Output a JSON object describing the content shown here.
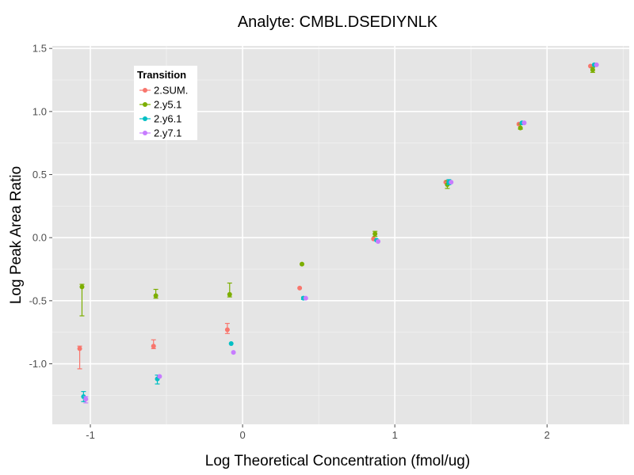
{
  "chart_data": {
    "type": "scatter",
    "title": "Analyte: CMBL.DSEDIYNLK",
    "xlabel": "Log Theoretical Concentration (fmol/ug)",
    "ylabel": "Log Peak Area Ratio",
    "xlim": [
      -1.25,
      2.54
    ],
    "ylim": [
      -1.48,
      1.52
    ],
    "x_ticks": [
      -1,
      0,
      1,
      2
    ],
    "x_tick_labels": [
      "-1",
      "0",
      "1",
      "2"
    ],
    "y_ticks": [
      -1.0,
      -0.5,
      0.0,
      0.5,
      1.0,
      1.5
    ],
    "y_tick_labels": [
      "-1.0",
      "-0.5",
      "0.0",
      "0.5",
      "1.0",
      "1.5"
    ],
    "grid": true,
    "background": "#e5e5e5",
    "legend": {
      "title": "Transition",
      "position": "top-left inside"
    },
    "series": [
      {
        "name": "2.SUM.",
        "color": "#f8766d",
        "points": [
          {
            "x": -1.07,
            "y": -0.88,
            "lo": -1.04,
            "hi": -0.86
          },
          {
            "x": -0.585,
            "y": -0.86,
            "lo": -0.88,
            "hi": -0.81
          },
          {
            "x": -0.1,
            "y": -0.73,
            "lo": -0.76,
            "hi": -0.68
          },
          {
            "x": 0.375,
            "y": -0.4
          },
          {
            "x": 0.86,
            "y": -0.01
          },
          {
            "x": 1.335,
            "y": 0.44
          },
          {
            "x": 1.815,
            "y": 0.9
          },
          {
            "x": 2.285,
            "y": 1.36
          }
        ]
      },
      {
        "name": "2.y5.1",
        "color": "#7cae00",
        "points": [
          {
            "x": -1.055,
            "y": -0.39,
            "lo": -0.62,
            "hi": -0.37
          },
          {
            "x": -0.57,
            "y": -0.46,
            "lo": -0.48,
            "hi": -0.41
          },
          {
            "x": -0.085,
            "y": -0.45,
            "lo": -0.47,
            "hi": -0.36
          },
          {
            "x": 0.39,
            "y": -0.21
          },
          {
            "x": 0.87,
            "y": 0.03,
            "lo": 0.01,
            "hi": 0.05
          },
          {
            "x": 1.345,
            "y": 0.42,
            "lo": 0.39,
            "hi": 0.45
          },
          {
            "x": 1.825,
            "y": 0.87,
            "lo": 0.86,
            "hi": 0.9
          },
          {
            "x": 2.3,
            "y": 1.33,
            "lo": 1.31,
            "hi": 1.35
          }
        ]
      },
      {
        "name": "2.y6.1",
        "color": "#00bfc4",
        "points": [
          {
            "x": -1.045,
            "y": -1.26,
            "lo": -1.3,
            "hi": -1.22
          },
          {
            "x": -0.56,
            "y": -1.12,
            "lo": -1.16,
            "hi": -1.09
          },
          {
            "x": -0.075,
            "y": -0.84
          },
          {
            "x": 0.4,
            "y": -0.48,
            "lo": -0.49,
            "hi": -0.47
          },
          {
            "x": 0.88,
            "y": -0.02
          },
          {
            "x": 1.355,
            "y": 0.44,
            "lo": 0.42,
            "hi": 0.46
          },
          {
            "x": 1.835,
            "y": 0.91
          },
          {
            "x": 2.31,
            "y": 1.37
          }
        ]
      },
      {
        "name": "2.y7.1",
        "color": "#c77cff",
        "points": [
          {
            "x": -1.03,
            "y": -1.28,
            "lo": -1.31,
            "hi": -1.26
          },
          {
            "x": -0.545,
            "y": -1.1
          },
          {
            "x": -0.06,
            "y": -0.91
          },
          {
            "x": 0.415,
            "y": -0.48
          },
          {
            "x": 0.89,
            "y": -0.03
          },
          {
            "x": 1.37,
            "y": 0.44
          },
          {
            "x": 1.85,
            "y": 0.91
          },
          {
            "x": 2.325,
            "y": 1.37
          }
        ]
      }
    ]
  }
}
